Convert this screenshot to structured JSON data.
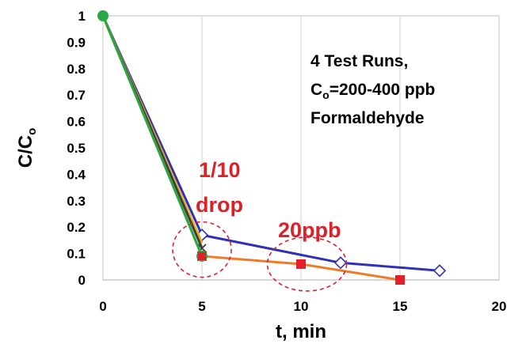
{
  "chart_data": {
    "type": "line",
    "xlabel": "t, min",
    "ylabel_main": "C/C",
    "ylabel_sub": "o",
    "xlim": [
      0,
      20
    ],
    "ylim": [
      0,
      1
    ],
    "xticks": [
      "0",
      "5",
      "10",
      "15",
      "20"
    ],
    "yticks": [
      "0",
      "0.1",
      "0.2",
      "0.3",
      "0.4",
      "0.5",
      "0.6",
      "0.7",
      "0.8",
      "0.9",
      "1"
    ],
    "grid": "vertical",
    "series": [
      {
        "color": "#2e31b8",
        "marker": "open-diamond",
        "markers_shown": [
          false,
          true,
          true,
          true
        ],
        "points": [
          [
            0,
            1.0
          ],
          [
            5,
            0.17
          ],
          [
            12,
            0.065
          ],
          [
            17,
            0.035
          ]
        ]
      },
      {
        "color": "#e8b020",
        "marker": "none",
        "markers_shown": [
          false,
          false
        ],
        "points": [
          [
            0,
            1.0
          ],
          [
            5,
            0.14
          ]
        ]
      },
      {
        "color": "#3d3d3d",
        "marker": "x",
        "markers_shown": [
          false,
          true
        ],
        "points": [
          [
            0,
            1.0
          ],
          [
            5,
            0.12
          ]
        ]
      },
      {
        "color": "#f07a28",
        "marker": "square",
        "marker_color": "#e0202a",
        "markers_shown": [
          false,
          true,
          true,
          true
        ],
        "points": [
          [
            0,
            1.0
          ],
          [
            5,
            0.09
          ],
          [
            10,
            0.06
          ],
          [
            15,
            0.0
          ]
        ]
      },
      {
        "color": "#27a844",
        "marker": "circle",
        "markers_shown": [
          true,
          true
        ],
        "points": [
          [
            0,
            1.0
          ],
          [
            5,
            0.09
          ]
        ]
      }
    ],
    "annotations": {
      "note_lines": [
        "4 Test Runs,",
        "=200-400 ppb",
        "Formaldehyde"
      ],
      "note_c": "C",
      "note_c_sub": "o",
      "callout_drop_line1": "1/10",
      "callout_drop_line2": "drop",
      "callout_ppb": "20ppb",
      "circles": [
        {
          "cx": 5,
          "cy": 0.115,
          "color": "#e0202a"
        },
        {
          "cx": 10.3,
          "cy": 0.06,
          "color": "#e0202a"
        }
      ]
    }
  }
}
